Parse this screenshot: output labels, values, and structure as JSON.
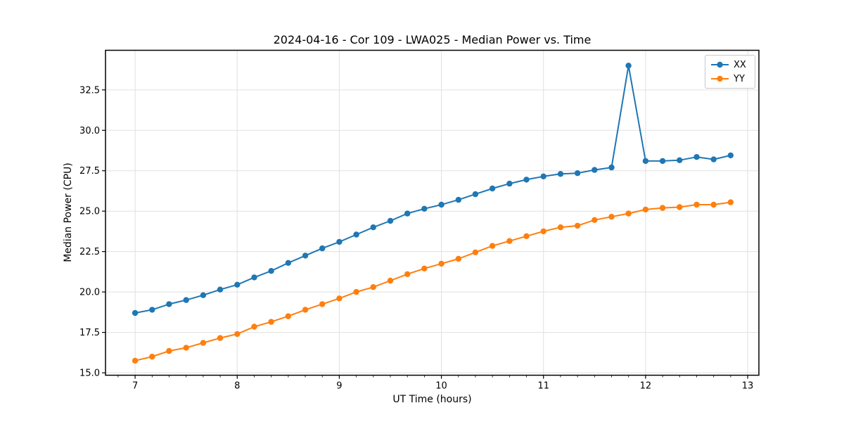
{
  "title": "2024-04-16 - Cor 109 - LWA025 - Median Power vs. Time",
  "colors": {
    "series_xx": "#1f77b4",
    "series_yy": "#ff7f0e",
    "grid": "#e0e0e0",
    "spine": "#000000",
    "background": "#ffffff"
  },
  "chart_data": {
    "type": "line",
    "title": "2024-04-16 - Cor 109 - LWA025 - Median Power vs. Time",
    "xlabel": "UT Time (hours)",
    "ylabel": "Median Power (CPU)",
    "xlim": [
      6.71,
      13.11
    ],
    "ylim": [
      14.85,
      34.95
    ],
    "x_ticks": [
      7,
      8,
      9,
      10,
      11,
      12,
      13
    ],
    "y_ticks": [
      15.0,
      17.5,
      20.0,
      22.5,
      25.0,
      27.5,
      30.0,
      32.5
    ],
    "x_minor_step": 0.16667,
    "grid": true,
    "legend_position": "upper right",
    "marker": "circle",
    "x": [
      7.0,
      7.167,
      7.333,
      7.5,
      7.667,
      7.833,
      8.0,
      8.167,
      8.333,
      8.5,
      8.667,
      8.833,
      9.0,
      9.167,
      9.333,
      9.5,
      9.667,
      9.833,
      10.0,
      10.167,
      10.333,
      10.5,
      10.667,
      10.833,
      11.0,
      11.167,
      11.333,
      11.5,
      11.667,
      11.833,
      12.0,
      12.167,
      12.333,
      12.5,
      12.667,
      12.833
    ],
    "series": [
      {
        "name": "XX",
        "color": "#1f77b4",
        "values": [
          18.7,
          18.9,
          19.25,
          19.5,
          19.8,
          20.15,
          20.45,
          20.9,
          21.3,
          21.8,
          22.25,
          22.7,
          23.1,
          23.55,
          24.0,
          24.4,
          24.85,
          25.15,
          25.4,
          25.7,
          26.05,
          26.4,
          26.7,
          26.95,
          27.15,
          27.3,
          27.35,
          27.55,
          27.7,
          34.0,
          28.1,
          28.1,
          28.15,
          28.35,
          28.2,
          28.45
        ]
      },
      {
        "name": "YY",
        "color": "#ff7f0e",
        "values": [
          15.75,
          16.0,
          16.35,
          16.55,
          16.85,
          17.15,
          17.4,
          17.85,
          18.15,
          18.5,
          18.9,
          19.25,
          19.6,
          20.0,
          20.3,
          20.7,
          21.1,
          21.45,
          21.75,
          22.05,
          22.45,
          22.85,
          23.15,
          23.45,
          23.75,
          24.0,
          24.1,
          24.45,
          24.65,
          24.85,
          25.1,
          25.2,
          25.25,
          25.4,
          25.4,
          25.55
        ]
      }
    ]
  }
}
